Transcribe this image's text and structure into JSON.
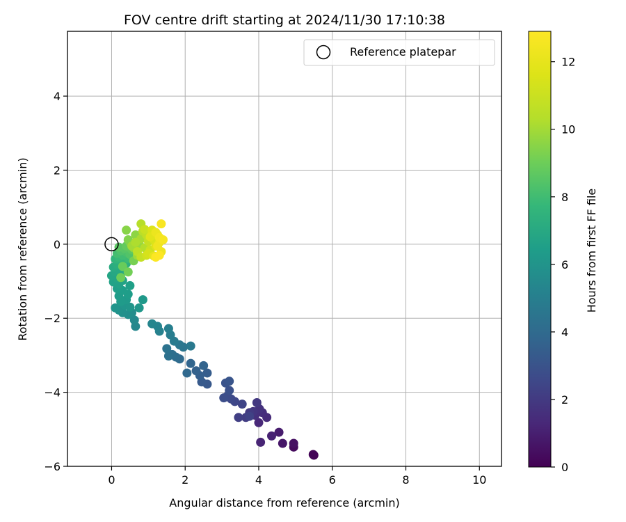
{
  "chart_data": {
    "type": "scatter",
    "title": "FOV centre drift starting at 2024/11/30 17:10:38",
    "xlabel": "Angular distance from reference (arcmin)",
    "ylabel": "Rotation from reference (arcmin)",
    "xlim": [
      -1.2,
      10.6
    ],
    "ylim": [
      -6.0,
      5.75
    ],
    "xticks": [
      0,
      2,
      4,
      6,
      8,
      10
    ],
    "yticks": [
      -6,
      -4,
      -2,
      0,
      2,
      4
    ],
    "xtick_labels": [
      "0",
      "2",
      "4",
      "6",
      "8",
      "10"
    ],
    "ytick_labels": [
      "−6",
      "−4",
      "−2",
      "0",
      "2",
      "4"
    ],
    "grid": true,
    "legend": {
      "placement": "top-right",
      "entries": [
        "Reference platepar"
      ]
    },
    "reference_point": {
      "name": "Reference platepar",
      "x": 0,
      "y": 0
    },
    "colorbar": {
      "label": "Hours from first FF file",
      "colormap": "viridis",
      "range": [
        0,
        12.9
      ],
      "ticks": [
        0,
        2,
        4,
        6,
        8,
        10,
        12
      ],
      "tick_labels": [
        "0",
        "2",
        "4",
        "6",
        "8",
        "10",
        "12"
      ]
    },
    "series": [
      {
        "points": [
          [
            5.5,
            -5.7,
            0.0
          ],
          [
            5.48,
            -5.68,
            0.1
          ],
          [
            4.95,
            -5.48,
            0.3
          ],
          [
            4.95,
            -5.38,
            0.5
          ],
          [
            4.65,
            -5.38,
            0.7
          ],
          [
            4.55,
            -5.08,
            0.9
          ],
          [
            4.35,
            -5.18,
            1.1
          ],
          [
            4.05,
            -5.35,
            1.2
          ],
          [
            4.0,
            -4.82,
            1.3
          ],
          [
            4.22,
            -4.68,
            1.4
          ],
          [
            4.1,
            -4.55,
            1.5
          ],
          [
            3.9,
            -4.62,
            1.6
          ],
          [
            4.02,
            -4.45,
            1.7
          ],
          [
            3.85,
            -4.52,
            1.8
          ],
          [
            3.95,
            -4.28,
            1.9
          ],
          [
            3.75,
            -4.55,
            2.0
          ],
          [
            3.65,
            -4.68,
            2.1
          ],
          [
            3.45,
            -4.68,
            2.2
          ],
          [
            3.75,
            -4.65,
            2.3
          ],
          [
            3.55,
            -4.32,
            2.4
          ],
          [
            3.35,
            -4.25,
            2.5
          ],
          [
            3.25,
            -4.18,
            2.6
          ],
          [
            3.15,
            -4.1,
            2.7
          ],
          [
            3.05,
            -4.15,
            2.8
          ],
          [
            3.2,
            -3.95,
            2.9
          ],
          [
            3.1,
            -3.75,
            3.0
          ],
          [
            3.2,
            -3.7,
            3.1
          ],
          [
            2.6,
            -3.78,
            3.2
          ],
          [
            2.45,
            -3.72,
            3.3
          ],
          [
            2.6,
            -3.48,
            3.4
          ],
          [
            2.4,
            -3.55,
            3.5
          ],
          [
            2.3,
            -3.42,
            3.6
          ],
          [
            2.5,
            -3.28,
            3.7
          ],
          [
            2.15,
            -3.22,
            3.8
          ],
          [
            2.05,
            -3.48,
            3.9
          ],
          [
            1.85,
            -3.1,
            4.0
          ],
          [
            1.75,
            -3.05,
            4.1
          ],
          [
            1.65,
            -2.98,
            4.2
          ],
          [
            1.55,
            -3.02,
            4.3
          ],
          [
            1.5,
            -2.82,
            4.4
          ],
          [
            1.95,
            -2.78,
            4.5
          ],
          [
            1.85,
            -2.72,
            4.6
          ],
          [
            2.15,
            -2.75,
            4.7
          ],
          [
            1.7,
            -2.62,
            4.8
          ],
          [
            1.6,
            -2.45,
            4.9
          ],
          [
            1.55,
            -2.28,
            5.0
          ],
          [
            1.3,
            -2.35,
            5.1
          ],
          [
            1.25,
            -2.22,
            5.2
          ],
          [
            1.1,
            -2.15,
            5.3
          ],
          [
            0.65,
            -2.22,
            5.4
          ],
          [
            0.62,
            -2.05,
            5.5
          ],
          [
            0.55,
            -1.85,
            5.6
          ],
          [
            0.45,
            -1.9,
            5.7
          ],
          [
            0.3,
            -1.85,
            5.8
          ],
          [
            0.2,
            -1.78,
            5.9
          ],
          [
            0.1,
            -1.72,
            6.0
          ],
          [
            0.35,
            -1.65,
            6.05
          ],
          [
            0.5,
            -1.7,
            6.1
          ],
          [
            0.75,
            -1.72,
            6.15
          ],
          [
            0.85,
            -1.5,
            6.2
          ],
          [
            0.4,
            -1.5,
            6.25
          ],
          [
            0.25,
            -1.55,
            6.3
          ],
          [
            0.2,
            -1.4,
            6.35
          ],
          [
            0.45,
            -1.35,
            6.4
          ],
          [
            0.3,
            -1.25,
            6.45
          ],
          [
            0.15,
            -1.2,
            6.5
          ],
          [
            0.5,
            -1.12,
            6.55
          ],
          [
            0.2,
            -1.08,
            6.6
          ],
          [
            0.05,
            -1.02,
            6.65
          ],
          [
            0.3,
            -0.98,
            6.7
          ],
          [
            0.15,
            -0.92,
            6.75
          ],
          [
            0.0,
            -0.85,
            6.8
          ],
          [
            0.25,
            -0.8,
            6.85
          ],
          [
            0.1,
            -0.75,
            6.9
          ],
          [
            0.35,
            -0.72,
            6.95
          ],
          [
            0.2,
            -0.68,
            7.0
          ],
          [
            0.05,
            -0.62,
            7.1
          ],
          [
            0.3,
            -0.6,
            7.2
          ],
          [
            0.15,
            -0.55,
            7.3
          ],
          [
            0.4,
            -0.52,
            7.4
          ],
          [
            0.25,
            -0.45,
            7.5
          ],
          [
            0.1,
            -0.4,
            7.6
          ],
          [
            0.35,
            -0.42,
            7.7
          ],
          [
            0.2,
            -0.35,
            7.8
          ],
          [
            0.45,
            -0.38,
            7.9
          ],
          [
            0.3,
            -0.3,
            8.0
          ],
          [
            0.15,
            -0.25,
            8.1
          ],
          [
            0.4,
            -0.22,
            8.2
          ],
          [
            0.25,
            -0.18,
            8.3
          ],
          [
            0.5,
            -0.28,
            8.4
          ],
          [
            0.35,
            -0.12,
            8.5
          ],
          [
            0.2,
            -0.08,
            8.6
          ],
          [
            0.55,
            -0.15,
            8.7
          ],
          [
            0.4,
            -0.05,
            8.8
          ],
          [
            0.3,
            -0.6,
            8.9
          ],
          [
            0.25,
            -0.9,
            9.0
          ],
          [
            0.45,
            -0.75,
            9.1
          ],
          [
            0.6,
            -0.45,
            9.2
          ],
          [
            0.5,
            0.05,
            9.3
          ],
          [
            0.45,
            0.12,
            9.4
          ],
          [
            0.4,
            0.38,
            9.5
          ],
          [
            0.65,
            0.25,
            9.6
          ],
          [
            0.6,
            -0.1,
            9.7
          ],
          [
            0.75,
            0.0,
            9.8
          ],
          [
            0.7,
            -0.3,
            9.9
          ],
          [
            0.55,
            -0.05,
            10.0
          ],
          [
            0.8,
            0.15,
            10.1
          ],
          [
            0.65,
            0.05,
            10.2
          ],
          [
            0.9,
            -0.1,
            10.3
          ],
          [
            0.8,
            0.55,
            10.4
          ],
          [
            0.85,
            0.35,
            10.5
          ],
          [
            0.7,
            -0.2,
            10.6
          ],
          [
            0.95,
            0.25,
            10.7
          ],
          [
            0.8,
            -0.35,
            10.8
          ],
          [
            1.0,
            0.08,
            10.9
          ],
          [
            0.9,
            0.4,
            11.0
          ],
          [
            1.05,
            -0.15,
            11.1
          ],
          [
            0.95,
            -0.3,
            11.2
          ],
          [
            1.1,
            0.3,
            11.3
          ],
          [
            1.0,
            -0.25,
            11.4
          ],
          [
            1.15,
            0.12,
            11.5
          ],
          [
            1.1,
            0.38,
            11.6
          ],
          [
            1.2,
            -0.05,
            11.7
          ],
          [
            1.05,
            0.2,
            11.8
          ],
          [
            1.25,
            0.25,
            11.9
          ],
          [
            1.15,
            -0.32,
            12.0
          ],
          [
            1.3,
            0.05,
            12.1
          ],
          [
            1.2,
            0.32,
            12.2
          ],
          [
            1.35,
            -0.2,
            12.3
          ],
          [
            1.25,
            -0.05,
            12.4
          ],
          [
            1.3,
            0.18,
            12.5
          ],
          [
            1.4,
            0.12,
            12.6
          ],
          [
            1.35,
            0.55,
            12.7
          ],
          [
            1.2,
            -0.35,
            12.8
          ],
          [
            1.3,
            -0.3,
            12.9
          ]
        ]
      }
    ]
  }
}
